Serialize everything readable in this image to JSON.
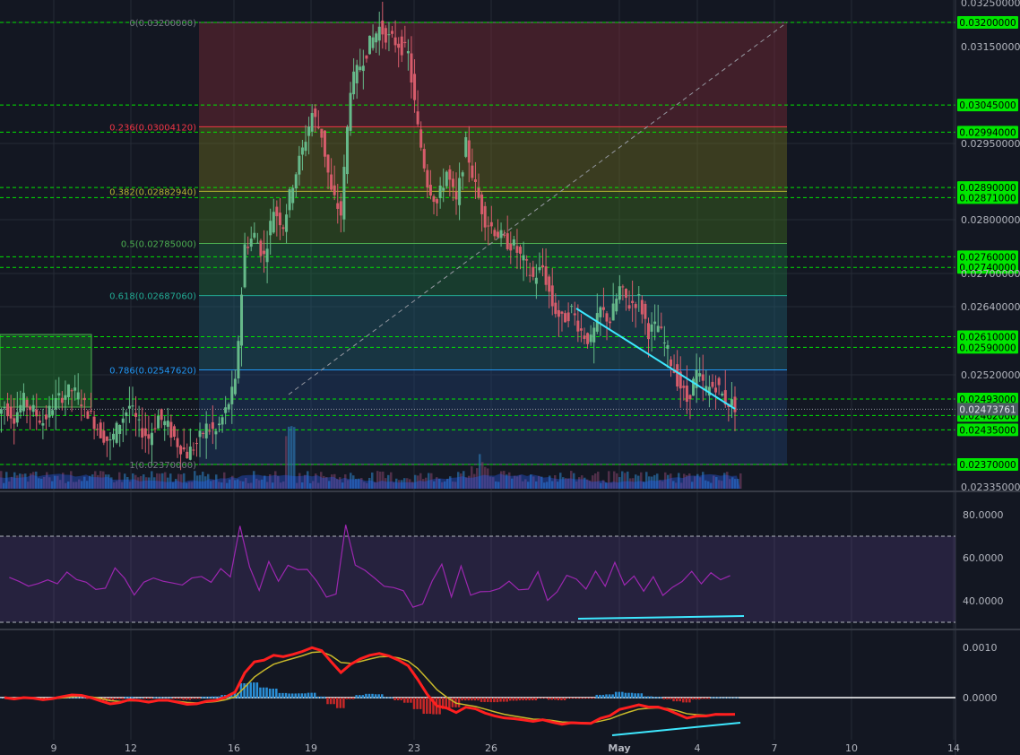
{
  "chart_data": [
    {
      "type": "candlestick",
      "title": "",
      "xlabel": "",
      "ylabel": "",
      "x_ticks": [
        "9",
        "12",
        "16",
        "19",
        "23",
        "26",
        "May",
        "4",
        "7",
        "10",
        "14"
      ],
      "y_ticks": [
        "0.03250000",
        "0.03150000",
        "0.02950000",
        "0.02800000",
        "0.02700000",
        "0.02640000",
        "0.02520000",
        "0.02335000"
      ],
      "ylim": [
        0.02335,
        0.0325
      ],
      "last_price": "0.02473761",
      "price_levels": [
        "0.03200000",
        "0.03045000",
        "0.02994000",
        "0.02890000",
        "0.02871000",
        "0.02760000",
        "0.02740000",
        "0.02610000",
        "0.02590000",
        "0.02493000",
        "0.02462000",
        "0.02435000",
        "0.02370000"
      ],
      "fibonacci": [
        {
          "label": "0(0.03200000)",
          "value": 0.032,
          "color": "#787b86"
        },
        {
          "label": "0.236(0.03004120)",
          "value": 0.0300412,
          "color": "#f23645"
        },
        {
          "label": "0.382(0.02882940)",
          "value": 0.0288294,
          "color": "#b5b531"
        },
        {
          "label": "0.5(0.02785000)",
          "value": 0.02785,
          "color": "#4caf50"
        },
        {
          "label": "0.618(0.02687060)",
          "value": 0.0268706,
          "color": "#22ab94"
        },
        {
          "label": "0.786(0.02547620)",
          "value": 0.0254762,
          "color": "#2196f3"
        },
        {
          "label": "1(0.02370000)",
          "value": 0.0237,
          "color": "#787b86"
        }
      ],
      "close_series": [
        0.0248,
        0.0246,
        0.0249,
        0.0247,
        0.0245,
        0.0248,
        0.025,
        0.0251,
        0.0249,
        0.0246,
        0.0243,
        0.0241,
        0.0245,
        0.0248,
        0.0244,
        0.0242,
        0.0246,
        0.0244,
        0.0241,
        0.0239,
        0.0241,
        0.0244,
        0.0243,
        0.0247,
        0.0252,
        0.0278,
        0.028,
        0.0276,
        0.0285,
        0.0282,
        0.029,
        0.0296,
        0.0303,
        0.0299,
        0.0288,
        0.0284,
        0.0308,
        0.0312,
        0.0316,
        0.0319,
        0.0317,
        0.0316,
        0.0314,
        0.03,
        0.029,
        0.0286,
        0.0292,
        0.0286,
        0.0297,
        0.0289,
        0.0283,
        0.0281,
        0.0279,
        0.0278,
        0.0275,
        0.0272,
        0.0274,
        0.0267,
        0.0264,
        0.0266,
        0.0262,
        0.026,
        0.0266,
        0.0264,
        0.027,
        0.0267,
        0.0268,
        0.0262,
        0.0263,
        0.0258,
        0.0253,
        0.0249,
        0.0254,
        0.0251,
        0.0252,
        0.0249,
        0.0248
      ],
      "rsi": {
        "ticks": [
          "80.0000",
          "60.0000",
          "40.0000"
        ],
        "overbought": 70,
        "oversold": 30
      },
      "macd": {
        "ticks": [
          "0.0010",
          "0.0000"
        ]
      },
      "colors": {
        "up": "#66b98a",
        "down": "#d65c6b",
        "bg": "#131722",
        "grid": "#262b36",
        "badge": "#00e600",
        "trend": "#3ee8ff",
        "rsi": "#9c27b0"
      }
    }
  ]
}
